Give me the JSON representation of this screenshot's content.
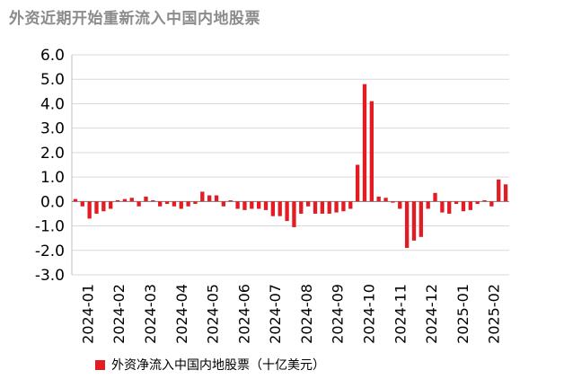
{
  "chart_data": {
    "type": "bar",
    "title": "外资近期开始重新流入中国内地股票",
    "series_name": "外资净流入中国内地股票（十亿美元）",
    "color": "#e31c23",
    "ylim": [
      -3.0,
      6.0
    ],
    "yticks": [
      "6.0",
      "5.0",
      "4.0",
      "3.0",
      "2.0",
      "1.0",
      "0.0",
      "-1.0",
      "-2.0",
      "-3.0"
    ],
    "xtick_labels": [
      "2024-01",
      "2024-02",
      "2024-03",
      "2024-04",
      "2024-05",
      "2024-06",
      "2024-07",
      "2024-08",
      "2024-09",
      "2024-10",
      "2024-11",
      "2024-12",
      "2025-01",
      "2025-02"
    ],
    "grid": true,
    "values": [
      0.1,
      -0.2,
      -0.7,
      -0.5,
      -0.4,
      -0.3,
      0.05,
      0.1,
      0.15,
      -0.2,
      0.2,
      0.05,
      -0.2,
      -0.1,
      -0.2,
      -0.3,
      -0.2,
      -0.1,
      0.4,
      0.25,
      0.25,
      -0.2,
      0.05,
      -0.3,
      -0.35,
      -0.3,
      -0.3,
      -0.35,
      -0.6,
      -0.6,
      -0.8,
      -1.05,
      -0.5,
      -0.2,
      -0.5,
      -0.5,
      -0.5,
      -0.45,
      -0.4,
      -0.3,
      1.5,
      4.8,
      4.1,
      0.2,
      0.15,
      -0.05,
      -0.3,
      -1.9,
      -1.6,
      -1.45,
      -0.3,
      0.35,
      -0.45,
      -0.5,
      -0.1,
      -0.4,
      -0.35,
      -0.1,
      0.05,
      -0.2,
      0.9,
      0.7
    ]
  }
}
